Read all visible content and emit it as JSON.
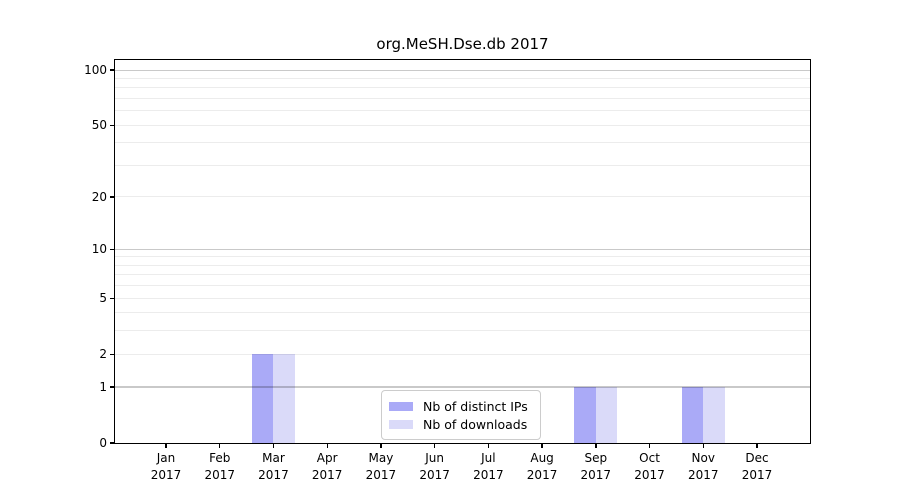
{
  "figure": {
    "title": "org.MeSH.Dse.db 2017"
  },
  "chart_data": {
    "type": "bar",
    "title": "org.MeSH.Dse.db 2017",
    "categories": [
      "Jan 2017",
      "Feb 2017",
      "Mar 2017",
      "Apr 2017",
      "May 2017",
      "Jun 2017",
      "Jul 2017",
      "Aug 2017",
      "Sep 2017",
      "Oct 2017",
      "Nov 2017",
      "Dec 2017"
    ],
    "series": [
      {
        "name": "Nb of distinct IPs",
        "color": "#aaaaf7",
        "values": [
          0,
          0,
          2,
          0,
          0,
          0,
          0,
          0,
          1,
          0,
          1,
          0
        ]
      },
      {
        "name": "Nb of downloads",
        "color": "#dadaf9",
        "values": [
          0,
          0,
          2,
          0,
          0,
          0,
          0,
          0,
          1,
          0,
          1,
          0
        ]
      }
    ],
    "xlabel": "",
    "ylabel": "",
    "ylim": [
      0,
      100
    ],
    "yscale": "log1p",
    "y_labeled_ticks": [
      0,
      1,
      2,
      5,
      10,
      20,
      50,
      100
    ],
    "y_minor_gridlines": [
      3,
      4,
      6,
      7,
      8,
      9,
      30,
      40,
      60,
      70,
      80,
      90
    ],
    "grid": true,
    "legend_position": "lower center"
  },
  "colors": {
    "background": "#ffffff",
    "bar_distinct_ips": "#aaaaf7",
    "bar_downloads": "#dadaf9",
    "grid_power10": "rgba(0,0,0,0.21)",
    "grid_light": "rgba(0,0,0,0.075)",
    "axis": "#000000",
    "legend_border": "#cccccc"
  }
}
